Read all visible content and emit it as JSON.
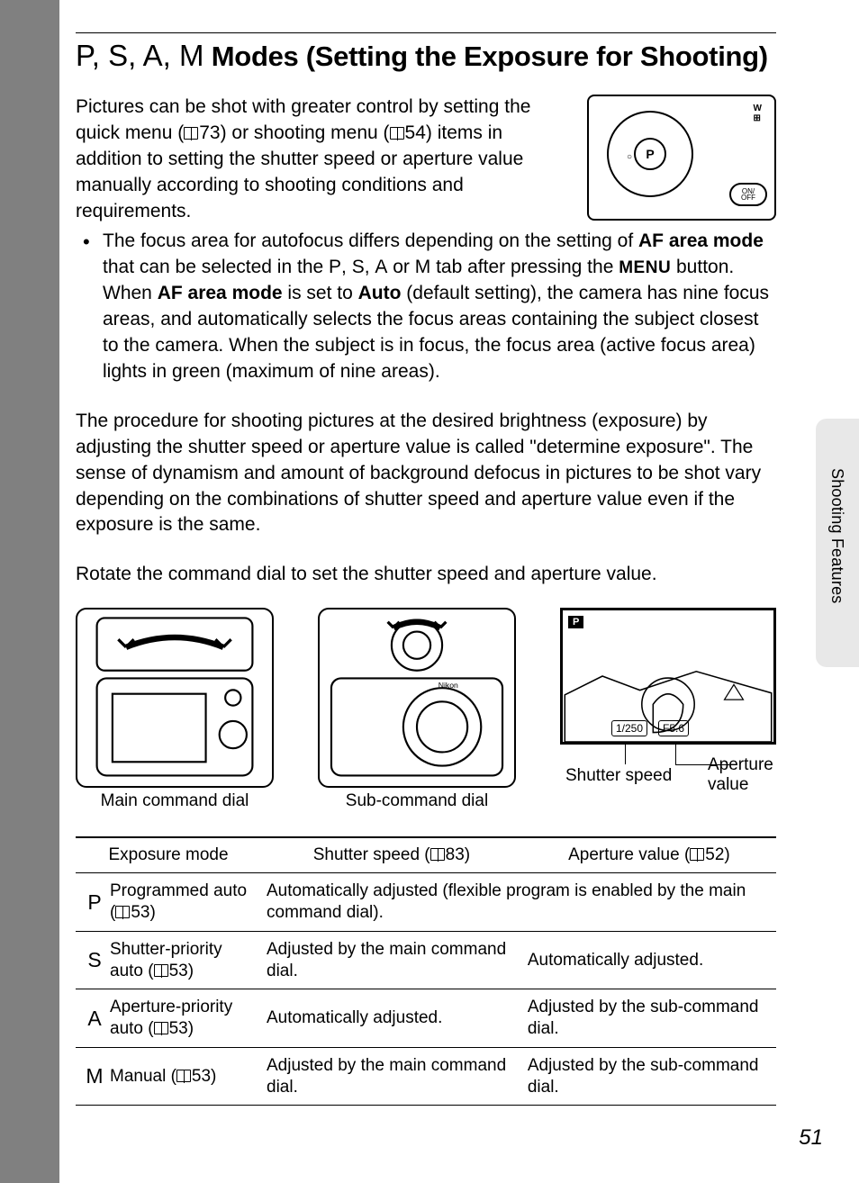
{
  "meta": {
    "page_number": "51",
    "side_label": "Shooting Features",
    "bg_color": "#808080",
    "page_color": "#ffffff",
    "tab_color": "#e8e8e8"
  },
  "title": {
    "mode_prefix": "P, S, A, M",
    "rest": " Modes (Setting the Exposure for Shooting)"
  },
  "intro": {
    "text_before_ref1": "Pictures can be shot with greater control by setting the quick menu (",
    "ref1": "73",
    "text_mid": ") or shooting menu (",
    "ref2": "54",
    "text_after": ") items in addition to setting the shutter speed or aperture value manually according to shooting conditions and requirements."
  },
  "bullet": {
    "line1_a": "The focus area for autofocus differs depending on the setting of ",
    "af_mode": "AF area mode",
    "line1_b": " that can be selected in the ",
    "p": "P",
    "s": "S",
    "a": "A",
    "m": "M",
    "line1_c": " or ",
    "line1_d": " tab after pressing the ",
    "menu": "MENU",
    "line1_e": " button.",
    "line2_a": "When ",
    "line2_b": " is set to ",
    "auto": "Auto",
    "line2_c": " (default setting), the camera has nine focus areas, and automatically selects the focus areas containing the subject closest to the camera. When the subject is in focus, the focus area (active focus area) lights in green (maximum of nine areas)."
  },
  "para1": "The procedure for shooting pictures at the desired brightness (exposure) by adjusting the shutter speed or aperture value is called \"determine exposure\". The sense of dynamism and amount of background defocus in pictures to be shot vary depending on the combinations of shutter speed and aperture value even if the exposure is the same.",
  "para2": "Rotate the command dial to set the shutter speed and aperture value.",
  "illus": {
    "main_dial": "Main command dial",
    "sub_dial": "Sub-command dial",
    "shutter_label": "Shutter speed",
    "aperture_label": "Aperture value",
    "lcd_mode": "P",
    "lcd_shutter": "1/250",
    "lcd_aperture": "F5.6"
  },
  "table": {
    "headers": {
      "mode": "Exposure mode",
      "shutter": "Shutter speed (",
      "shutter_ref": "83",
      "shutter_close": ")",
      "aperture": "Aperture value (",
      "aperture_ref": "52",
      "aperture_close": ")"
    },
    "rows": [
      {
        "letter": "P",
        "name_a": "Programmed auto (",
        "name_ref": "53",
        "name_b": ")",
        "shutter": "Automatically adjusted (flexible program is enabled by the main command dial).",
        "aperture": "",
        "colspan": true
      },
      {
        "letter": "S",
        "name_a": "Shutter-priority auto (",
        "name_ref": "53",
        "name_b": ")",
        "shutter": "Adjusted by the main command dial.",
        "aperture": "Automatically adjusted."
      },
      {
        "letter": "A",
        "name_a": "Aperture-priority auto (",
        "name_ref": "53",
        "name_b": ")",
        "shutter": "Automatically adjusted.",
        "aperture": "Adjusted by the sub-command dial."
      },
      {
        "letter": "M",
        "name_a": "Manual (",
        "name_ref": "53",
        "name_b": ")",
        "shutter": "Adjusted by the main command dial.",
        "aperture": "Adjusted by the sub-command dial."
      }
    ]
  }
}
